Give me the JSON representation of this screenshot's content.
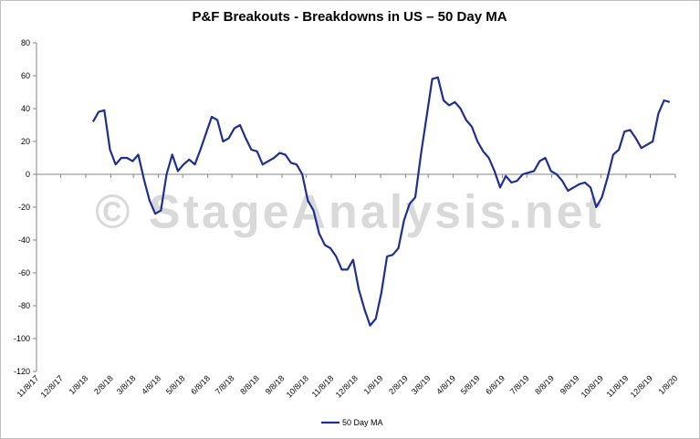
{
  "chart_data": {
    "type": "line",
    "title": "P&F Breakouts - Breakdowns in US – 50 Day MA",
    "watermark": "© StageAnalysis.net",
    "x": [
      "2018-01-17",
      "2018-01-24",
      "2018-01-31",
      "2018-02-07",
      "2018-02-14",
      "2018-02-21",
      "2018-02-28",
      "2018-03-07",
      "2018-03-14",
      "2018-03-21",
      "2018-03-28",
      "2018-04-04",
      "2018-04-11",
      "2018-04-18",
      "2018-04-25",
      "2018-05-02",
      "2018-05-09",
      "2018-05-16",
      "2018-05-23",
      "2018-05-30",
      "2018-06-06",
      "2018-06-13",
      "2018-06-20",
      "2018-06-27",
      "2018-07-04",
      "2018-07-11",
      "2018-07-18",
      "2018-07-25",
      "2018-08-01",
      "2018-08-08",
      "2018-08-15",
      "2018-08-22",
      "2018-08-29",
      "2018-09-05",
      "2018-09-12",
      "2018-09-19",
      "2018-09-26",
      "2018-10-03",
      "2018-10-10",
      "2018-10-17",
      "2018-10-24",
      "2018-10-31",
      "2018-11-07",
      "2018-11-14",
      "2018-11-21",
      "2018-11-28",
      "2018-12-05",
      "2018-12-12",
      "2018-12-19",
      "2018-12-26",
      "2019-01-02",
      "2019-01-09",
      "2019-01-16",
      "2019-01-23",
      "2019-01-30",
      "2019-02-06",
      "2019-02-13",
      "2019-02-20",
      "2019-02-27",
      "2019-03-06",
      "2019-03-13",
      "2019-03-20",
      "2019-03-27",
      "2019-04-03",
      "2019-04-10",
      "2019-04-17",
      "2019-04-24",
      "2019-05-01",
      "2019-05-08",
      "2019-05-15",
      "2019-05-22",
      "2019-05-29",
      "2019-06-05",
      "2019-06-12",
      "2019-06-19",
      "2019-06-26",
      "2019-07-03",
      "2019-07-10",
      "2019-07-17",
      "2019-07-24",
      "2019-07-31",
      "2019-08-07",
      "2019-08-14",
      "2019-08-21",
      "2019-08-28",
      "2019-09-04",
      "2019-09-11",
      "2019-09-18",
      "2019-09-25",
      "2019-10-02",
      "2019-10-09",
      "2019-10-16",
      "2019-10-23",
      "2019-10-30",
      "2019-11-06",
      "2019-11-13",
      "2019-11-20",
      "2019-11-27",
      "2019-12-04",
      "2019-12-11",
      "2019-12-18",
      "2019-12-25",
      "2020-01-01"
    ],
    "series": [
      {
        "name": "50 Day MA",
        "color": "#1f2f8f",
        "values": [
          32,
          38,
          39,
          15,
          6,
          10,
          10,
          8,
          12,
          -3,
          -16,
          -24,
          -22,
          0,
          12,
          2,
          6,
          9,
          6,
          15,
          25,
          35,
          33,
          20,
          22,
          28,
          30,
          22,
          15,
          14,
          6,
          8,
          10,
          13,
          12,
          7,
          6,
          0,
          -16,
          -22,
          -36,
          -43,
          -45,
          -50,
          -58,
          -58,
          -52,
          -70,
          -82,
          -92,
          -88,
          -72,
          -50,
          -49,
          -45,
          -28,
          -18,
          -14,
          12,
          35,
          58,
          59,
          45,
          42,
          44,
          40,
          33,
          29,
          20,
          14,
          10,
          2,
          -8,
          -1,
          -5,
          -4,
          0,
          1,
          2,
          8,
          10,
          2,
          0,
          -4,
          -10,
          -8,
          -6,
          -5,
          -8,
          -20,
          -14,
          -2,
          12,
          15,
          26,
          27,
          22,
          16,
          18,
          20,
          37,
          45,
          44
        ]
      }
    ],
    "xlim": [
      "2017-11-08",
      "2020-01-08"
    ],
    "xticks": [
      {
        "value": "2017-11-08",
        "label": "11/8/17"
      },
      {
        "value": "2017-12-08",
        "label": "12/8/17"
      },
      {
        "value": "2018-01-08",
        "label": "1/8/18"
      },
      {
        "value": "2018-02-08",
        "label": "2/8/18"
      },
      {
        "value": "2018-03-08",
        "label": "3/8/18"
      },
      {
        "value": "2018-04-08",
        "label": "4/8/18"
      },
      {
        "value": "2018-05-08",
        "label": "5/8/18"
      },
      {
        "value": "2018-06-08",
        "label": "6/8/18"
      },
      {
        "value": "2018-07-08",
        "label": "7/8/18"
      },
      {
        "value": "2018-08-08",
        "label": "8/8/18"
      },
      {
        "value": "2018-09-08",
        "label": "9/8/18"
      },
      {
        "value": "2018-10-08",
        "label": "10/8/18"
      },
      {
        "value": "2018-11-08",
        "label": "11/8/18"
      },
      {
        "value": "2018-12-08",
        "label": "12/8/18"
      },
      {
        "value": "2019-01-08",
        "label": "1/8/19"
      },
      {
        "value": "2019-02-08",
        "label": "2/8/19"
      },
      {
        "value": "2019-03-08",
        "label": "3/8/19"
      },
      {
        "value": "2019-04-08",
        "label": "4/8/19"
      },
      {
        "value": "2019-05-08",
        "label": "5/8/19"
      },
      {
        "value": "2019-06-08",
        "label": "6/8/19"
      },
      {
        "value": "2019-07-08",
        "label": "7/8/19"
      },
      {
        "value": "2019-08-08",
        "label": "8/8/19"
      },
      {
        "value": "2019-09-08",
        "label": "9/8/19"
      },
      {
        "value": "2019-10-08",
        "label": "10/8/19"
      },
      {
        "value": "2019-11-08",
        "label": "11/8/19"
      },
      {
        "value": "2019-12-08",
        "label": "12/8/19"
      },
      {
        "value": "2020-01-08",
        "label": "1/8/20"
      }
    ],
    "ylim": [
      -120,
      80
    ],
    "yticks": [
      -120,
      -100,
      -80,
      -60,
      -40,
      -20,
      0,
      20,
      40,
      60,
      80
    ],
    "grid": false,
    "legend": "bottom"
  }
}
